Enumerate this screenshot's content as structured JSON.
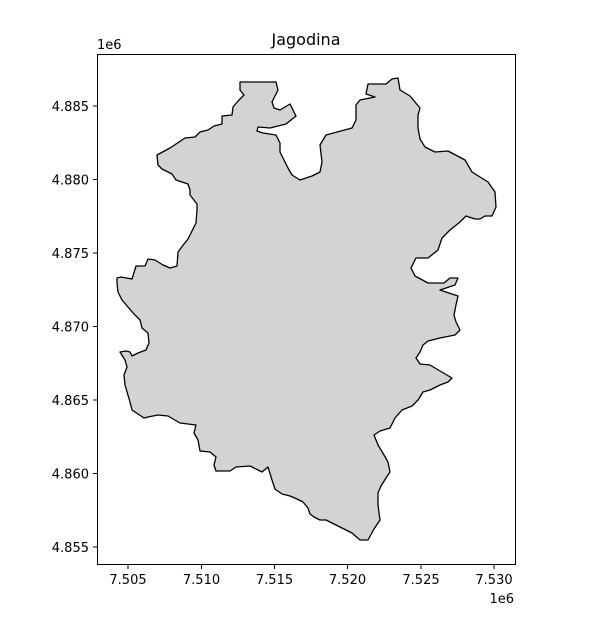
{
  "title": "Jagodina",
  "x_axis": {
    "offset_label": "1e6",
    "ticks": [
      "7.505",
      "7.510",
      "7.515",
      "7.520",
      "7.525",
      "7.530"
    ]
  },
  "y_axis": {
    "offset_label": "1e6",
    "ticks": [
      "4.885",
      "4.880",
      "4.875",
      "4.870",
      "4.865",
      "4.860",
      "4.855"
    ]
  },
  "region": {
    "name": "Jagodina",
    "fill_color": "#d3d3d3",
    "stroke_color": "#000000"
  },
  "chart_data": {
    "type": "map",
    "title": "Jagodina",
    "xlim": [
      7.5033,
      7.5314
    ],
    "ylim": [
      4.8538,
      4.8886
    ],
    "axis_scale": "1e6",
    "grid": false
  }
}
